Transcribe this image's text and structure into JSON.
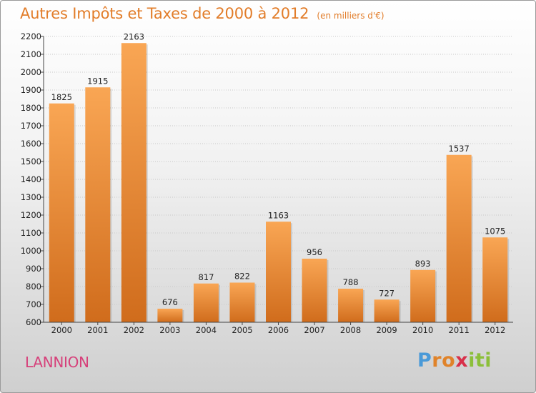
{
  "header": {
    "title": "Autres Impôts et Taxes de 2000 à 2012",
    "unit": "(en milliers d'€)"
  },
  "footer": {
    "city": "LANNION",
    "brand": [
      "P",
      "r",
      "o",
      "x",
      "i",
      "t",
      "i"
    ]
  },
  "colors": {
    "bar_top": "#f9a654",
    "bar_bottom": "#d06c1c",
    "title": "#e27d2a",
    "city": "#d6407a",
    "brand": [
      "#4a9ad8",
      "#e0832a",
      "#e0832a",
      "#d8304a",
      "#8cbf3a",
      "#8cbf3a",
      "#8cbf3a"
    ]
  },
  "chart_data": {
    "type": "bar",
    "title": "Autres Impôts et Taxes de 2000 à 2012",
    "subtitle": "(en milliers d'€)",
    "categories": [
      "2000",
      "2001",
      "2002",
      "2003",
      "2004",
      "2005",
      "2006",
      "2007",
      "2008",
      "2009",
      "2010",
      "2011",
      "2012"
    ],
    "values": [
      1825,
      1915,
      2163,
      676,
      817,
      822,
      1163,
      956,
      788,
      727,
      893,
      1537,
      1075
    ],
    "ylim": [
      600,
      2200
    ],
    "yticks": [
      600,
      700,
      800,
      900,
      1000,
      1100,
      1200,
      1300,
      1400,
      1500,
      1600,
      1700,
      1800,
      1900,
      2000,
      2100,
      2200
    ],
    "grid": true,
    "data_labels": true
  }
}
